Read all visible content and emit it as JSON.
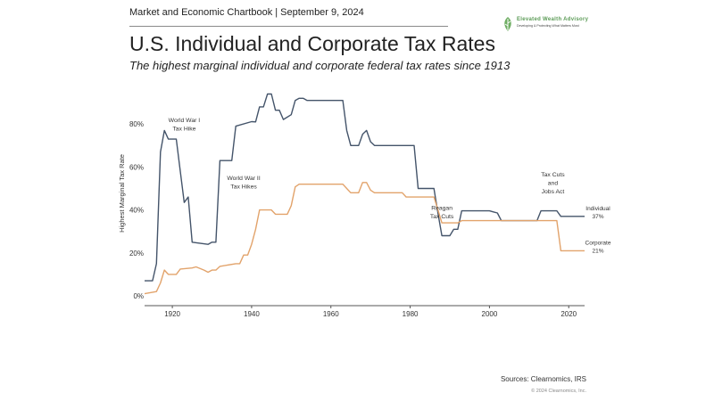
{
  "header": {
    "chartbook_line": "Market and Economic Chartbook | September 9, 2024",
    "title": "U.S. Individual and Corporate Tax Rates",
    "subtitle": "The highest marginal individual and corporate federal tax rates since 1913"
  },
  "logo": {
    "name": "Elevated Wealth Advisory",
    "tagline": "Developing & Protecting What Matters Most",
    "color": "#5a9a55"
  },
  "footer": {
    "source": "Sources: Clearnomics, IRS",
    "copyright": "© 2024 Clearnomics, Inc."
  },
  "chart_data": {
    "type": "line",
    "title": "U.S. Individual and Corporate Tax Rates",
    "xlabel": "",
    "ylabel": "Highest Marginal Tax Rate",
    "xlim": [
      1913,
      2024
    ],
    "ylim": [
      0,
      100
    ],
    "xticks": [
      1920,
      1940,
      1960,
      1980,
      2000,
      2020
    ],
    "xtick_labels": [
      "1920",
      "1940",
      "1960",
      "1980",
      "2000",
      "2020"
    ],
    "yticks": [
      0,
      20,
      40,
      60,
      80
    ],
    "ytick_labels": [
      "0%",
      "20%",
      "40%",
      "60%",
      "80%"
    ],
    "grid": false,
    "series": [
      {
        "name": "Individual",
        "end_label": "37%",
        "color": "#44546a",
        "points": [
          [
            1913,
            7
          ],
          [
            1915,
            7
          ],
          [
            1916,
            15
          ],
          [
            1917,
            67
          ],
          [
            1918,
            77
          ],
          [
            1919,
            73
          ],
          [
            1921,
            73
          ],
          [
            1922,
            58
          ],
          [
            1923,
            43.5
          ],
          [
            1924,
            46
          ],
          [
            1925,
            25
          ],
          [
            1929,
            24
          ],
          [
            1930,
            25
          ],
          [
            1931,
            25
          ],
          [
            1932,
            63
          ],
          [
            1935,
            63
          ],
          [
            1936,
            79
          ],
          [
            1940,
            81.1
          ],
          [
            1941,
            81
          ],
          [
            1942,
            88
          ],
          [
            1943,
            88
          ],
          [
            1944,
            94
          ],
          [
            1945,
            94
          ],
          [
            1946,
            86.45
          ],
          [
            1947,
            86.45
          ],
          [
            1948,
            82.13
          ],
          [
            1950,
            84.36
          ],
          [
            1951,
            91
          ],
          [
            1952,
            92
          ],
          [
            1953,
            92
          ],
          [
            1954,
            91
          ],
          [
            1963,
            91
          ],
          [
            1964,
            77
          ],
          [
            1965,
            70
          ],
          [
            1967,
            70
          ],
          [
            1968,
            75.25
          ],
          [
            1969,
            77
          ],
          [
            1970,
            71.75
          ],
          [
            1971,
            70
          ],
          [
            1981,
            70
          ],
          [
            1982,
            50
          ],
          [
            1986,
            50
          ],
          [
            1987,
            38.5
          ],
          [
            1988,
            28
          ],
          [
            1990,
            28
          ],
          [
            1991,
            31
          ],
          [
            1992,
            31
          ],
          [
            1993,
            39.6
          ],
          [
            2000,
            39.6
          ],
          [
            2001,
            39.1
          ],
          [
            2002,
            38.6
          ],
          [
            2003,
            35
          ],
          [
            2012,
            35
          ],
          [
            2013,
            39.6
          ],
          [
            2017,
            39.6
          ],
          [
            2018,
            37
          ],
          [
            2024,
            37
          ]
        ]
      },
      {
        "name": "Corporate",
        "end_label": "21%",
        "color": "#e2a36b",
        "points": [
          [
            1913,
            1
          ],
          [
            1916,
            2
          ],
          [
            1917,
            6
          ],
          [
            1918,
            12
          ],
          [
            1919,
            10
          ],
          [
            1921,
            10
          ],
          [
            1922,
            12.5
          ],
          [
            1925,
            13
          ],
          [
            1926,
            13.5
          ],
          [
            1928,
            12
          ],
          [
            1929,
            11
          ],
          [
            1930,
            12
          ],
          [
            1931,
            12
          ],
          [
            1932,
            13.75
          ],
          [
            1936,
            15
          ],
          [
            1937,
            15
          ],
          [
            1938,
            19
          ],
          [
            1939,
            19
          ],
          [
            1940,
            24
          ],
          [
            1941,
            31
          ],
          [
            1942,
            40
          ],
          [
            1945,
            40
          ],
          [
            1946,
            38
          ],
          [
            1949,
            38
          ],
          [
            1950,
            42
          ],
          [
            1951,
            50.75
          ],
          [
            1952,
            52
          ],
          [
            1963,
            52
          ],
          [
            1964,
            50
          ],
          [
            1965,
            48
          ],
          [
            1967,
            48
          ],
          [
            1968,
            52.8
          ],
          [
            1969,
            52.8
          ],
          [
            1970,
            49.2
          ],
          [
            1971,
            48
          ],
          [
            1978,
            48
          ],
          [
            1979,
            46
          ],
          [
            1986,
            46
          ],
          [
            1987,
            40
          ],
          [
            1988,
            34
          ],
          [
            1992,
            34
          ],
          [
            1993,
            35
          ],
          [
            2017,
            35
          ],
          [
            2018,
            21
          ],
          [
            2024,
            21
          ]
        ]
      }
    ],
    "annotations": [
      {
        "lines": [
          "World War I",
          "Tax Hike"
        ],
        "x": 1923,
        "y": 81
      },
      {
        "lines": [
          "World War II",
          "Tax Hikes"
        ],
        "x": 1938,
        "y": 54
      },
      {
        "lines": [
          "Reagan",
          "Tax Cuts"
        ],
        "x": 1988,
        "y": 40
      },
      {
        "lines": [
          "Tax Cuts",
          "and",
          "Jobs Act"
        ],
        "x": 2016,
        "y": 55.5
      }
    ]
  }
}
